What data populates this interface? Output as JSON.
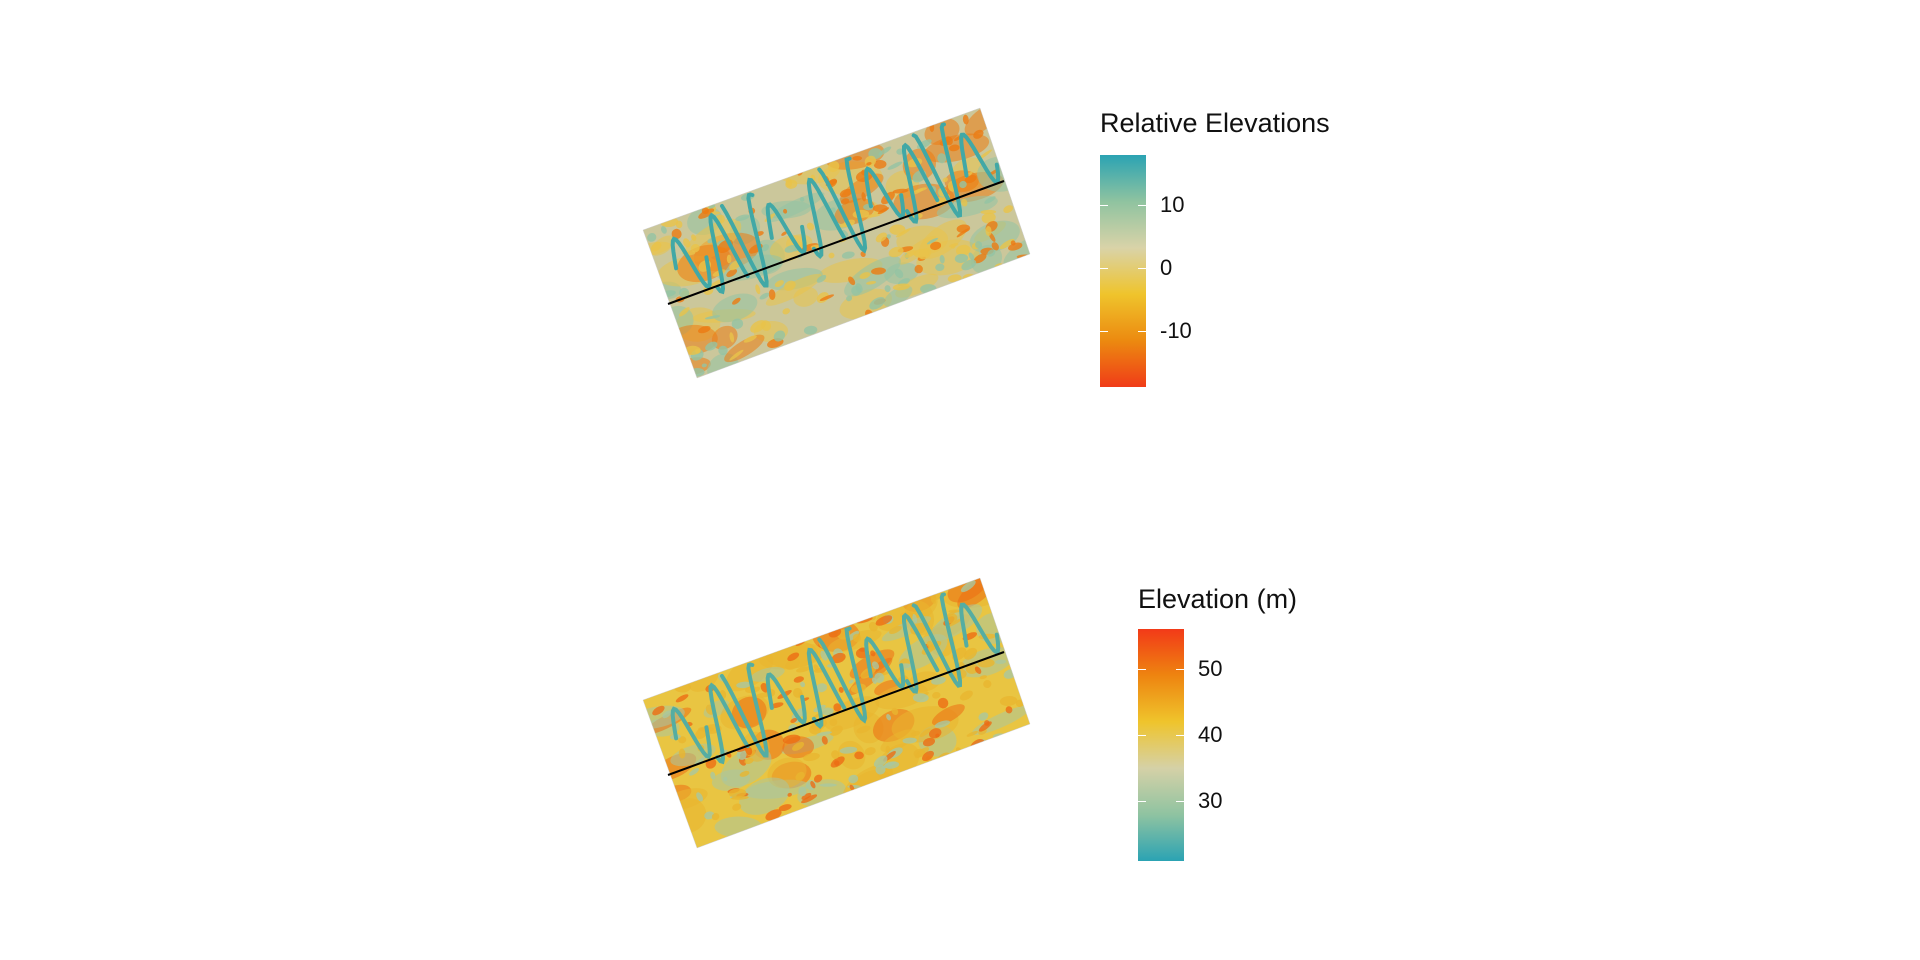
{
  "maps": [
    {
      "id": "relative",
      "legend": {
        "title": "Relative Elevations",
        "range": [
          -19,
          18
        ],
        "ticks": [
          {
            "value": 10,
            "label": "10"
          },
          {
            "value": 0,
            "label": "0"
          },
          {
            "value": -10,
            "label": "-10"
          }
        ],
        "gradient": [
          "#2ba3b3",
          "#8fc3a0",
          "#d9d3a8",
          "#efc42c",
          "#ec8a10",
          "#f03c18"
        ],
        "direction": "high-at-top"
      },
      "palette": {
        "base": "#cbc79b",
        "channel": "#41a8a6",
        "lowland": "#ec7b12",
        "mid": "#e9c34a",
        "high": "#93c3a4"
      }
    },
    {
      "id": "absolute",
      "legend": {
        "title": "Elevation (m)",
        "range": [
          21,
          56
        ],
        "ticks": [
          {
            "value": 50,
            "label": "50"
          },
          {
            "value": 40,
            "label": "40"
          },
          {
            "value": 30,
            "label": "30"
          }
        ],
        "gradient": [
          "#f23a18",
          "#ee8410",
          "#efc42c",
          "#d5d1a7",
          "#8fc3a1",
          "#2ba3b3"
        ],
        "direction": "high-at-top"
      },
      "palette": {
        "base": "#e9c542",
        "channel": "#55ada2",
        "lowland": "#ec6d14",
        "mid": "#e9b530",
        "high": "#a9c7a0"
      }
    }
  ]
}
